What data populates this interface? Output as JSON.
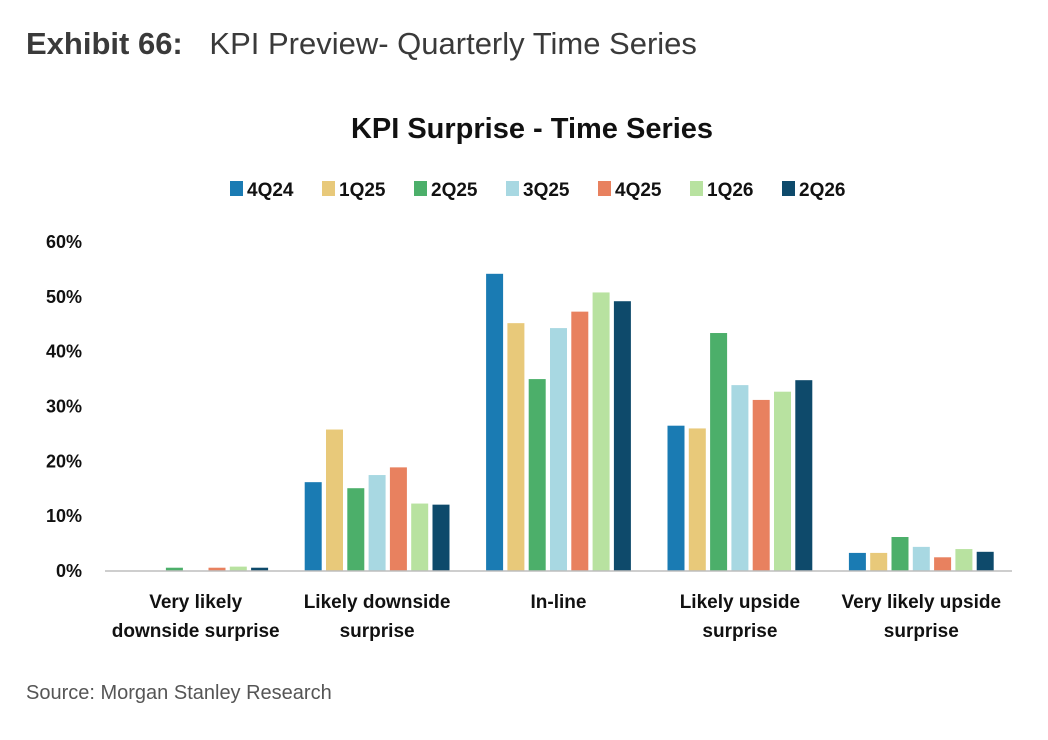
{
  "exhibit": {
    "label": "Exhibit 66:",
    "title": "KPI Preview- Quarterly Time Series"
  },
  "source": "Source: Morgan Stanley Research",
  "chart_data": {
    "type": "bar",
    "title": "KPI Surprise - Time Series",
    "xlabel": "",
    "ylabel": "",
    "ylim": [
      0,
      60
    ],
    "yticks": [
      "0%",
      "10%",
      "20%",
      "30%",
      "40%",
      "50%",
      "60%"
    ],
    "ytick_values": [
      0,
      10,
      20,
      30,
      40,
      50,
      60
    ],
    "grid": false,
    "legend_position": "top",
    "categories": [
      [
        "Very likely",
        "downside surprise"
      ],
      [
        "Likely downside",
        "surprise"
      ],
      [
        "In-line"
      ],
      [
        "Likely upside",
        "surprise"
      ],
      [
        "Very likely upside",
        "surprise"
      ]
    ],
    "series": [
      {
        "name": "4Q24",
        "color": "#1a7bb3",
        "values": [
          0,
          16.2,
          54.2,
          26.5,
          3.3
        ]
      },
      {
        "name": "1Q25",
        "color": "#e8c97a",
        "values": [
          0,
          25.8,
          45.2,
          26.0,
          3.3
        ]
      },
      {
        "name": "2Q25",
        "color": "#4caf6a",
        "values": [
          0.6,
          15.1,
          35.0,
          43.4,
          6.2
        ]
      },
      {
        "name": "3Q25",
        "color": "#a8d8e2",
        "values": [
          0,
          17.5,
          44.3,
          33.9,
          4.4
        ]
      },
      {
        "name": "4Q25",
        "color": "#e8815f",
        "values": [
          0.6,
          18.9,
          47.3,
          31.2,
          2.5
        ]
      },
      {
        "name": "1Q26",
        "color": "#b8e2a0",
        "values": [
          0.8,
          12.3,
          50.8,
          32.7,
          4.0
        ]
      },
      {
        "name": "2Q26",
        "color": "#0e4a6b",
        "values": [
          0.6,
          12.1,
          49.2,
          34.8,
          3.5
        ]
      }
    ]
  }
}
